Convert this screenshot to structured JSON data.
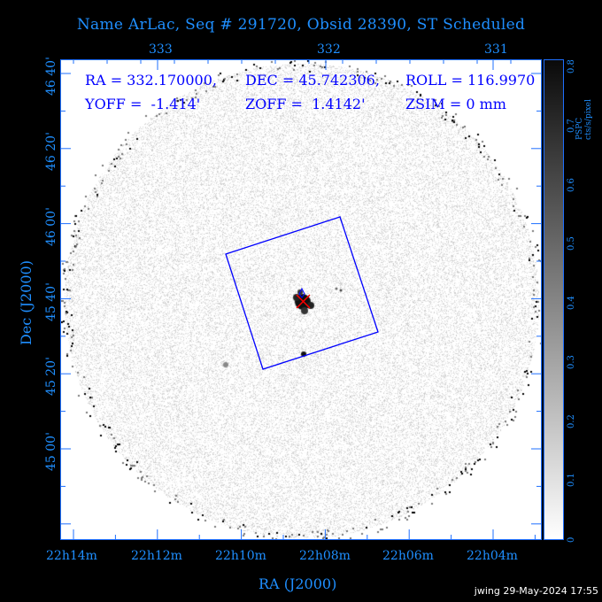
{
  "title": "Name ArLac, Seq # 291720, Obsid 28390, ST Scheduled",
  "info": {
    "ra": "RA = 332.170000,",
    "dec": "DEC = 45.742306,",
    "roll": "ROLL = 116.9970",
    "yoff": "YOFF =  -1.414'",
    "zoff": "ZOFF =  1.4142'",
    "zsim": "ZSIM = 0 mm"
  },
  "credit": "jwing 29-May-2024 17:55",
  "colors": {
    "axis": "#1e6fff",
    "overlay": "#0000ff",
    "marker": "#ff0000",
    "background": "#000000"
  },
  "chart_data": {
    "type": "heatmap",
    "title": "Name ArLac, Seq # 291720, Obsid 28390, ST Scheduled",
    "xlabel": "RA (J2000)",
    "ylabel": "Dec (J2000)",
    "x_ticks_bottom": [
      "22h14m",
      "22h12m",
      "22h10m",
      "22h08m",
      "22h06m",
      "22h04m"
    ],
    "x_ticks_top": [
      "333",
      "332",
      "331"
    ],
    "y_ticks": [
      "46 40'",
      "46 20'",
      "46 00'",
      "45 40'",
      "45 20'",
      "45 00'"
    ],
    "colorbar": {
      "label": "PSPC cts/s/pixel",
      "ticks": [
        "0",
        "0.1",
        "0.2",
        "0.3",
        "0.4",
        "0.5",
        "0.6",
        "0.7",
        "0.8"
      ],
      "range": [
        0,
        0.8
      ],
      "colormap": "white-to-black"
    },
    "target": {
      "ra": 332.17,
      "dec": 45.742306
    },
    "grid": false
  }
}
